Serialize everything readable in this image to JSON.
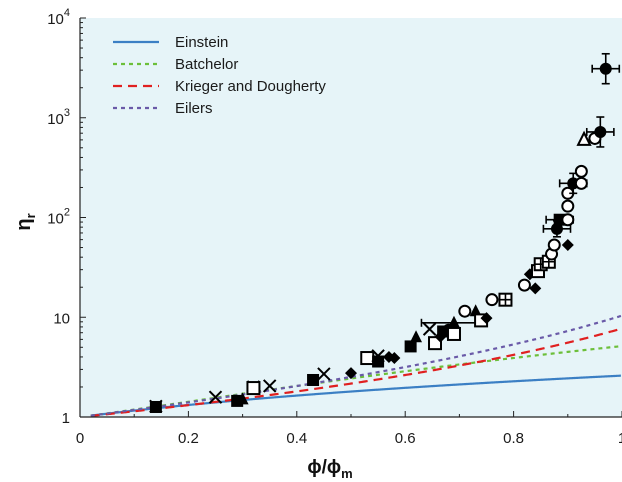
{
  "chart_data": {
    "type": "scatter",
    "xlabel": "ϕ/ϕ",
    "xlabel_sub": "m",
    "ylabel": "η",
    "ylabel_sub": "r",
    "xlim": [
      0,
      1
    ],
    "ylim": [
      1,
      10000
    ],
    "yscale": "log",
    "x_ticks": [
      {
        "value": 0,
        "label": "0"
      },
      {
        "value": 0.2,
        "label": "0.2"
      },
      {
        "value": 0.4,
        "label": "0.4"
      },
      {
        "value": 0.6,
        "label": "0.6"
      },
      {
        "value": 0.8,
        "label": "0.8"
      },
      {
        "value": 1.0,
        "label": "1"
      }
    ],
    "y_ticks": [
      {
        "value": 1,
        "label": "1",
        "sup": ""
      },
      {
        "value": 10,
        "label": "10",
        "sup": ""
      },
      {
        "value": 100,
        "label": "10",
        "sup": "2"
      },
      {
        "value": 1000,
        "label": "10",
        "sup": "3"
      },
      {
        "value": 10000,
        "label": "10",
        "sup": "4"
      }
    ],
    "background": "#e6f4f8",
    "legend_position": "top-left",
    "curves": [
      {
        "name": "Einstein",
        "color": "#3b7fc4",
        "dash": "",
        "model": "einstein"
      },
      {
        "name": "Batchelor",
        "color": "#6cbf3a",
        "dash": "4,4",
        "model": "batchelor"
      },
      {
        "name": "Krieger and Dougherty",
        "color": "#e02020",
        "dash": "9,6",
        "model": "krieger"
      },
      {
        "name": "Eilers",
        "color": "#6a5aa8",
        "dash": "4,4",
        "model": "eilers"
      }
    ],
    "points": [
      {
        "x": 0.14,
        "y": 1.28,
        "m": "x"
      },
      {
        "x": 0.14,
        "y": 1.26,
        "m": "fs"
      },
      {
        "x": 0.25,
        "y": 1.58,
        "m": "x"
      },
      {
        "x": 0.29,
        "y": 1.45,
        "m": "fs"
      },
      {
        "x": 0.3,
        "y": 1.5,
        "m": "ft"
      },
      {
        "x": 0.32,
        "y": 2.0,
        "m": "x"
      },
      {
        "x": 0.32,
        "y": 1.95,
        "m": "os"
      },
      {
        "x": 0.35,
        "y": 2.05,
        "m": "x"
      },
      {
        "x": 0.43,
        "y": 2.35,
        "m": "fs"
      },
      {
        "x": 0.45,
        "y": 2.7,
        "m": "x"
      },
      {
        "x": 0.5,
        "y": 2.75,
        "m": "fd"
      },
      {
        "x": 0.53,
        "y": 3.9,
        "m": "os"
      },
      {
        "x": 0.55,
        "y": 3.6,
        "m": "fs"
      },
      {
        "x": 0.55,
        "y": 4.1,
        "m": "x"
      },
      {
        "x": 0.57,
        "y": 4.0,
        "m": "fd"
      },
      {
        "x": 0.58,
        "y": 3.9,
        "m": "fd"
      },
      {
        "x": 0.61,
        "y": 5.1,
        "m": "fs"
      },
      {
        "x": 0.62,
        "y": 6.3,
        "m": "ft"
      },
      {
        "x": 0.645,
        "y": 7.6,
        "m": "x"
      },
      {
        "x": 0.655,
        "y": 5.5,
        "m": "os"
      },
      {
        "x": 0.665,
        "y": 6.4,
        "m": "fd"
      },
      {
        "x": 0.67,
        "y": 7.2,
        "m": "fs"
      },
      {
        "x": 0.68,
        "y": 7.5,
        "m": "fc"
      },
      {
        "x": 0.69,
        "y": 6.8,
        "m": "os"
      },
      {
        "x": 0.69,
        "y": 8.8,
        "m": "ft",
        "err": 0.12
      },
      {
        "x": 0.71,
        "y": 11.5,
        "m": "oc"
      },
      {
        "x": 0.73,
        "y": 11.5,
        "m": "ft"
      },
      {
        "x": 0.74,
        "y": 9.3,
        "m": "os"
      },
      {
        "x": 0.75,
        "y": 9.8,
        "m": "fd"
      },
      {
        "x": 0.76,
        "y": 15.0,
        "m": "oc"
      },
      {
        "x": 0.785,
        "y": 15.0,
        "m": "ps"
      },
      {
        "x": 0.82,
        "y": 21.0,
        "m": "oc"
      },
      {
        "x": 0.83,
        "y": 27.0,
        "m": "fd"
      },
      {
        "x": 0.84,
        "y": 19.5,
        "m": "fd"
      },
      {
        "x": 0.845,
        "y": 29.0,
        "m": "os"
      },
      {
        "x": 0.85,
        "y": 34.0,
        "m": "ps"
      },
      {
        "x": 0.865,
        "y": 36.0,
        "m": "ps"
      },
      {
        "x": 0.87,
        "y": 43.0,
        "m": "oc"
      },
      {
        "x": 0.875,
        "y": 53.0,
        "m": "oc"
      },
      {
        "x": 0.88,
        "y": 77.0,
        "m": "fc",
        "err": 0.05,
        "yerr": 0.08
      },
      {
        "x": 0.885,
        "y": 95.0,
        "m": "fs",
        "err": 0.05
      },
      {
        "x": 0.9,
        "y": 53.0,
        "m": "fd"
      },
      {
        "x": 0.9,
        "y": 95.0,
        "m": "oc"
      },
      {
        "x": 0.9,
        "y": 130.0,
        "m": "oc"
      },
      {
        "x": 0.9,
        "y": 175.0,
        "m": "oc"
      },
      {
        "x": 0.91,
        "y": 220.0,
        "m": "fc",
        "err": 0.05,
        "yerr": 0.1
      },
      {
        "x": 0.925,
        "y": 220.0,
        "m": "oc"
      },
      {
        "x": 0.925,
        "y": 290.0,
        "m": "oc"
      },
      {
        "x": 0.93,
        "y": 600.0,
        "m": "ot"
      },
      {
        "x": 0.95,
        "y": 620.0,
        "m": "oc"
      },
      {
        "x": 0.96,
        "y": 720.0,
        "m": "fc",
        "err": 0.05,
        "yerr": 0.15
      },
      {
        "x": 0.97,
        "y": 3100.0,
        "m": "fc",
        "err": 0.05,
        "yerr": 0.15
      }
    ]
  }
}
